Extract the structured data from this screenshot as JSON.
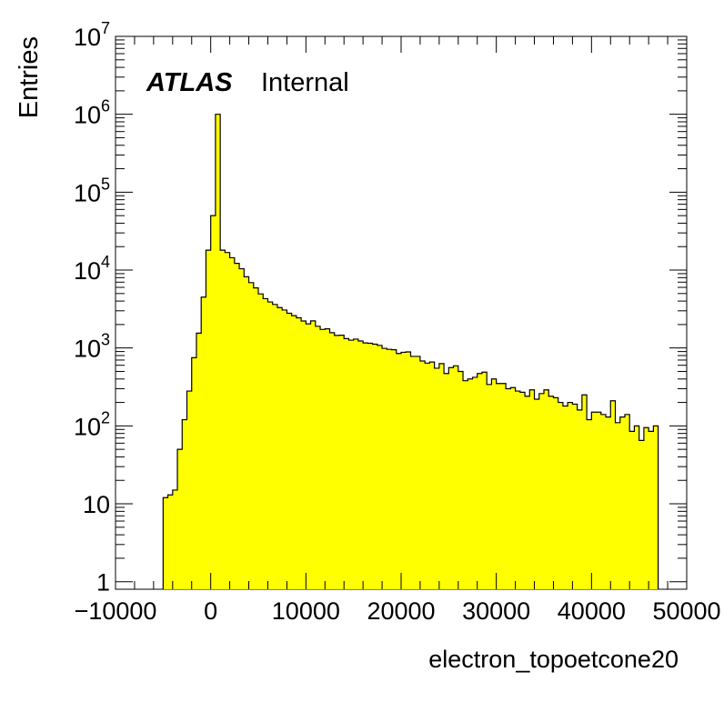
{
  "chart_data": {
    "type": "histogram",
    "xlabel": "electron_topoetcone20",
    "ylabel": "Entries",
    "label_bold": "ATLAS",
    "label_normal": "Internal",
    "xlim": [
      -10000,
      50000
    ],
    "ylim": [
      0.8,
      10000000
    ],
    "log_y": true,
    "bin_width": 500,
    "x_start": -5000,
    "x_ticks": [
      {
        "value": -10000,
        "label": "−10000"
      },
      {
        "value": 0,
        "label": "0"
      },
      {
        "value": 10000,
        "label": "10000"
      },
      {
        "value": 20000,
        "label": "20000"
      },
      {
        "value": 30000,
        "label": "30000"
      },
      {
        "value": 40000,
        "label": "40000"
      },
      {
        "value": 50000,
        "label": "50000"
      }
    ],
    "y_ticks": [
      {
        "value": 1,
        "base": "1",
        "exp": ""
      },
      {
        "value": 10,
        "base": "10",
        "exp": ""
      },
      {
        "value": 100,
        "base": "10",
        "exp": "2"
      },
      {
        "value": 1000,
        "base": "10",
        "exp": "3"
      },
      {
        "value": 10000,
        "base": "10",
        "exp": "4"
      },
      {
        "value": 100000,
        "base": "10",
        "exp": "5"
      },
      {
        "value": 1000000,
        "base": "10",
        "exp": "6"
      },
      {
        "value": 10000000,
        "base": "10",
        "exp": "7"
      }
    ],
    "values": [
      12,
      13,
      15,
      50,
      120,
      280,
      750,
      1550,
      4500,
      18000,
      50000,
      1000000,
      18000,
      16800,
      14400,
      12200,
      10400,
      8200,
      6900,
      5900,
      4950,
      4300,
      3900,
      3620,
      3300,
      3070,
      2790,
      2600,
      2440,
      2220,
      2040,
      2230,
      1900,
      1730,
      1760,
      1570,
      1450,
      1460,
      1320,
      1260,
      1300,
      1230,
      1160,
      1150,
      1120,
      1080,
      990,
      960,
      950,
      850,
      880,
      890,
      780,
      780,
      680,
      640,
      660,
      550,
      630,
      470,
      560,
      590,
      500,
      380,
      400,
      420,
      470,
      490,
      340,
      400,
      350,
      350,
      300,
      310,
      280,
      270,
      240,
      290,
      220,
      260,
      290,
      240,
      230,
      200,
      180,
      200,
      190,
      160,
      250,
      120,
      150,
      150,
      140,
      130,
      210,
      110,
      130,
      140,
      85,
      100,
      65,
      95,
      85,
      100
    ]
  }
}
